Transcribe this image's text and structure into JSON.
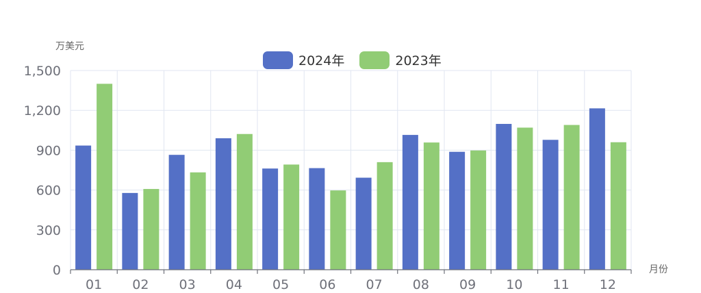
{
  "chart_data": {
    "type": "bar",
    "ylabel": "万美元",
    "xlabel": "月份",
    "ylim": [
      0,
      1500
    ],
    "yticks": [
      0,
      300,
      600,
      900,
      1200,
      1500
    ],
    "ytick_labels": [
      "0",
      "300",
      "600",
      "900",
      "1,200",
      "1,500"
    ],
    "categories": [
      "01",
      "02",
      "03",
      "04",
      "05",
      "06",
      "07",
      "08",
      "09",
      "10",
      "11",
      "12"
    ],
    "series": [
      {
        "name": "2024年",
        "color": "#5470c6",
        "values": [
          935,
          578,
          865,
          990,
          762,
          765,
          693,
          1015,
          888,
          1098,
          978,
          1215
        ]
      },
      {
        "name": "2023年",
        "color": "#91cc75",
        "values": [
          1400,
          608,
          733,
          1022,
          792,
          597,
          810,
          958,
          898,
          1070,
          1090,
          960
        ]
      }
    ],
    "grid": true,
    "legend_position": "top-center"
  }
}
